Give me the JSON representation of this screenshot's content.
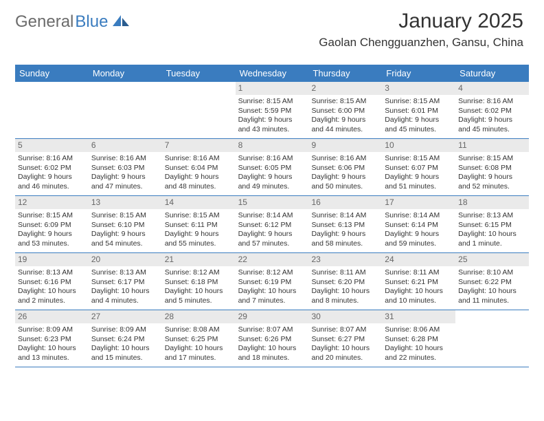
{
  "brand": {
    "part1": "General",
    "part2": "Blue"
  },
  "colors": {
    "brand_blue": "#3a7cbf",
    "brand_gray": "#6b6b6b",
    "header_bg": "#3a7cbf",
    "daynum_bg": "#eaeaea",
    "text": "#333333",
    "background": "#ffffff"
  },
  "header": {
    "title": "January 2025",
    "location": "Gaolan Chengguanzhen, Gansu, China"
  },
  "day_labels": [
    "Sunday",
    "Monday",
    "Tuesday",
    "Wednesday",
    "Thursday",
    "Friday",
    "Saturday"
  ],
  "weeks": [
    [
      null,
      null,
      null,
      {
        "n": "1",
        "sr": "8:15 AM",
        "ss": "5:59 PM",
        "dl1": "Daylight: 9 hours",
        "dl2": "and 43 minutes."
      },
      {
        "n": "2",
        "sr": "8:15 AM",
        "ss": "6:00 PM",
        "dl1": "Daylight: 9 hours",
        "dl2": "and 44 minutes."
      },
      {
        "n": "3",
        "sr": "8:15 AM",
        "ss": "6:01 PM",
        "dl1": "Daylight: 9 hours",
        "dl2": "and 45 minutes."
      },
      {
        "n": "4",
        "sr": "8:16 AM",
        "ss": "6:02 PM",
        "dl1": "Daylight: 9 hours",
        "dl2": "and 45 minutes."
      }
    ],
    [
      {
        "n": "5",
        "sr": "8:16 AM",
        "ss": "6:02 PM",
        "dl1": "Daylight: 9 hours",
        "dl2": "and 46 minutes."
      },
      {
        "n": "6",
        "sr": "8:16 AM",
        "ss": "6:03 PM",
        "dl1": "Daylight: 9 hours",
        "dl2": "and 47 minutes."
      },
      {
        "n": "7",
        "sr": "8:16 AM",
        "ss": "6:04 PM",
        "dl1": "Daylight: 9 hours",
        "dl2": "and 48 minutes."
      },
      {
        "n": "8",
        "sr": "8:16 AM",
        "ss": "6:05 PM",
        "dl1": "Daylight: 9 hours",
        "dl2": "and 49 minutes."
      },
      {
        "n": "9",
        "sr": "8:16 AM",
        "ss": "6:06 PM",
        "dl1": "Daylight: 9 hours",
        "dl2": "and 50 minutes."
      },
      {
        "n": "10",
        "sr": "8:15 AM",
        "ss": "6:07 PM",
        "dl1": "Daylight: 9 hours",
        "dl2": "and 51 minutes."
      },
      {
        "n": "11",
        "sr": "8:15 AM",
        "ss": "6:08 PM",
        "dl1": "Daylight: 9 hours",
        "dl2": "and 52 minutes."
      }
    ],
    [
      {
        "n": "12",
        "sr": "8:15 AM",
        "ss": "6:09 PM",
        "dl1": "Daylight: 9 hours",
        "dl2": "and 53 minutes."
      },
      {
        "n": "13",
        "sr": "8:15 AM",
        "ss": "6:10 PM",
        "dl1": "Daylight: 9 hours",
        "dl2": "and 54 minutes."
      },
      {
        "n": "14",
        "sr": "8:15 AM",
        "ss": "6:11 PM",
        "dl1": "Daylight: 9 hours",
        "dl2": "and 55 minutes."
      },
      {
        "n": "15",
        "sr": "8:14 AM",
        "ss": "6:12 PM",
        "dl1": "Daylight: 9 hours",
        "dl2": "and 57 minutes."
      },
      {
        "n": "16",
        "sr": "8:14 AM",
        "ss": "6:13 PM",
        "dl1": "Daylight: 9 hours",
        "dl2": "and 58 minutes."
      },
      {
        "n": "17",
        "sr": "8:14 AM",
        "ss": "6:14 PM",
        "dl1": "Daylight: 9 hours",
        "dl2": "and 59 minutes."
      },
      {
        "n": "18",
        "sr": "8:13 AM",
        "ss": "6:15 PM",
        "dl1": "Daylight: 10 hours",
        "dl2": "and 1 minute."
      }
    ],
    [
      {
        "n": "19",
        "sr": "8:13 AM",
        "ss": "6:16 PM",
        "dl1": "Daylight: 10 hours",
        "dl2": "and 2 minutes."
      },
      {
        "n": "20",
        "sr": "8:13 AM",
        "ss": "6:17 PM",
        "dl1": "Daylight: 10 hours",
        "dl2": "and 4 minutes."
      },
      {
        "n": "21",
        "sr": "8:12 AM",
        "ss": "6:18 PM",
        "dl1": "Daylight: 10 hours",
        "dl2": "and 5 minutes."
      },
      {
        "n": "22",
        "sr": "8:12 AM",
        "ss": "6:19 PM",
        "dl1": "Daylight: 10 hours",
        "dl2": "and 7 minutes."
      },
      {
        "n": "23",
        "sr": "8:11 AM",
        "ss": "6:20 PM",
        "dl1": "Daylight: 10 hours",
        "dl2": "and 8 minutes."
      },
      {
        "n": "24",
        "sr": "8:11 AM",
        "ss": "6:21 PM",
        "dl1": "Daylight: 10 hours",
        "dl2": "and 10 minutes."
      },
      {
        "n": "25",
        "sr": "8:10 AM",
        "ss": "6:22 PM",
        "dl1": "Daylight: 10 hours",
        "dl2": "and 11 minutes."
      }
    ],
    [
      {
        "n": "26",
        "sr": "8:09 AM",
        "ss": "6:23 PM",
        "dl1": "Daylight: 10 hours",
        "dl2": "and 13 minutes."
      },
      {
        "n": "27",
        "sr": "8:09 AM",
        "ss": "6:24 PM",
        "dl1": "Daylight: 10 hours",
        "dl2": "and 15 minutes."
      },
      {
        "n": "28",
        "sr": "8:08 AM",
        "ss": "6:25 PM",
        "dl1": "Daylight: 10 hours",
        "dl2": "and 17 minutes."
      },
      {
        "n": "29",
        "sr": "8:07 AM",
        "ss": "6:26 PM",
        "dl1": "Daylight: 10 hours",
        "dl2": "and 18 minutes."
      },
      {
        "n": "30",
        "sr": "8:07 AM",
        "ss": "6:27 PM",
        "dl1": "Daylight: 10 hours",
        "dl2": "and 20 minutes."
      },
      {
        "n": "31",
        "sr": "8:06 AM",
        "ss": "6:28 PM",
        "dl1": "Daylight: 10 hours",
        "dl2": "and 22 minutes."
      },
      null
    ]
  ],
  "labels": {
    "sunrise_prefix": "Sunrise: ",
    "sunset_prefix": "Sunset: "
  }
}
